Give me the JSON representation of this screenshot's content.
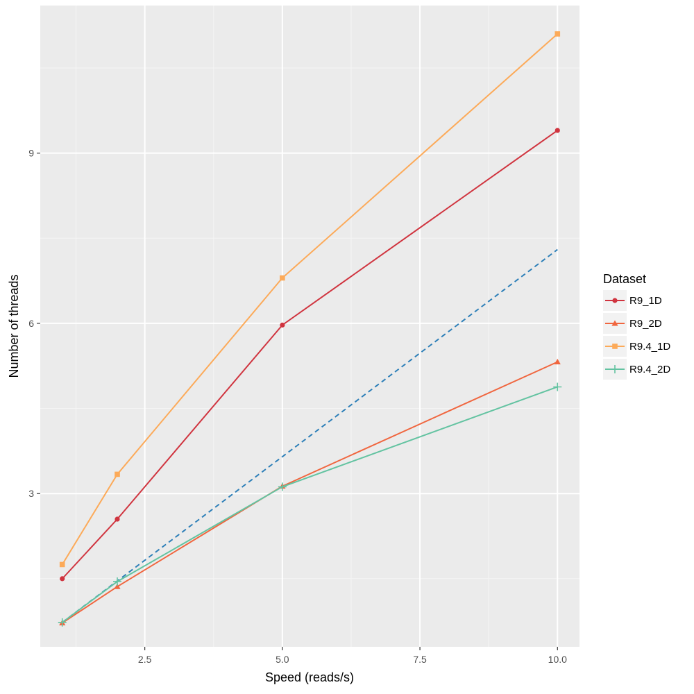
{
  "chart_data": {
    "type": "line",
    "xlabel": "Speed (reads/s)",
    "ylabel": "Number of threads",
    "xlim": [
      0.6,
      10.4
    ],
    "ylim": [
      0.3,
      11.6
    ],
    "x_ticks": [
      2.5,
      5.0,
      7.5,
      10.0
    ],
    "x_tick_labels": [
      "2.5",
      "5.0",
      "7.5",
      "10.0"
    ],
    "y_ticks": [
      3,
      6,
      9
    ],
    "y_tick_labels": [
      "3",
      "6",
      "9"
    ],
    "grid": true,
    "legend": {
      "title": "Dataset",
      "placement": "right"
    },
    "series": [
      {
        "name": "R9_1D",
        "color": "#d0343f",
        "marker": "circle",
        "x": [
          1,
          2,
          5,
          10
        ],
        "y": [
          1.5,
          2.55,
          5.97,
          9.4
        ]
      },
      {
        "name": "R9_2D",
        "color": "#f0663f",
        "marker": "triangle",
        "x": [
          1,
          2,
          5,
          10
        ],
        "y": [
          0.72,
          1.36,
          3.13,
          5.32
        ]
      },
      {
        "name": "R9.4_1D",
        "color": "#fcaa59",
        "marker": "square",
        "x": [
          1,
          2,
          5,
          10
        ],
        "y": [
          1.75,
          3.34,
          6.8,
          11.1
        ]
      },
      {
        "name": "R9.4_2D",
        "color": "#63c3a1",
        "marker": "plus",
        "x": [
          1,
          2,
          5,
          10
        ],
        "y": [
          0.73,
          1.45,
          3.12,
          4.88
        ]
      }
    ],
    "reference_line": {
      "color": "#2d7fb8",
      "style": "dashed",
      "x": [
        1,
        10
      ],
      "y": [
        0.73,
        7.3
      ]
    }
  }
}
